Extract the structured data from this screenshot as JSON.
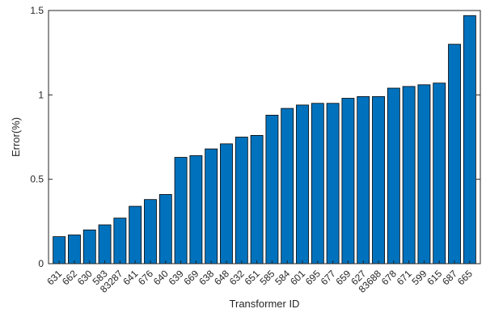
{
  "chart_data": {
    "type": "bar",
    "categories": [
      "631",
      "662",
      "630",
      "583",
      "83287",
      "641",
      "676",
      "640",
      "639",
      "669",
      "638",
      "648",
      "632",
      "651",
      "585",
      "584",
      "601",
      "695",
      "677",
      "659",
      "627",
      "83688",
      "678",
      "671",
      "599",
      "615",
      "687",
      "665"
    ],
    "values": [
      0.16,
      0.17,
      0.2,
      0.23,
      0.27,
      0.34,
      0.38,
      0.41,
      0.63,
      0.64,
      0.68,
      0.71,
      0.75,
      0.76,
      0.88,
      0.92,
      0.94,
      0.95,
      0.95,
      0.98,
      0.99,
      0.99,
      1.04,
      1.05,
      1.06,
      1.07,
      1.3,
      1.47
    ],
    "xlabel": "Transformer ID",
    "ylabel": "Error(%)",
    "ylim": [
      0,
      1.5
    ],
    "yticks": [
      "0",
      "0.5",
      "1",
      "1.5"
    ],
    "grid": false,
    "bar_color": "#0072BD"
  }
}
